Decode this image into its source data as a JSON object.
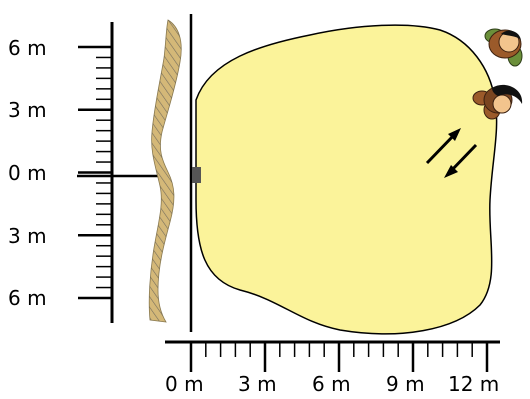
{
  "vertical_scale": {
    "labels": [
      "6 m",
      "3 m",
      "0 m",
      "3 m",
      "6 m"
    ]
  },
  "horizontal_scale": {
    "labels": [
      "0 m",
      "3 m",
      "6 m",
      "9 m",
      "12 m"
    ]
  },
  "colors": {
    "pond_fill": "#fbf39a",
    "pond_stroke": "#000000",
    "wall_fill": "#d4b878",
    "figure_hair_dark": "#111111",
    "figure_hair_green": "#6b8f3a",
    "figure_body": "#9b5a2a",
    "figure_skin": "#f2c48d"
  },
  "icons": {
    "arrow_pair": "double-arrow-icon",
    "marker": "square-marker-icon",
    "people": [
      "person-topview-icon",
      "person-topview-icon"
    ]
  }
}
